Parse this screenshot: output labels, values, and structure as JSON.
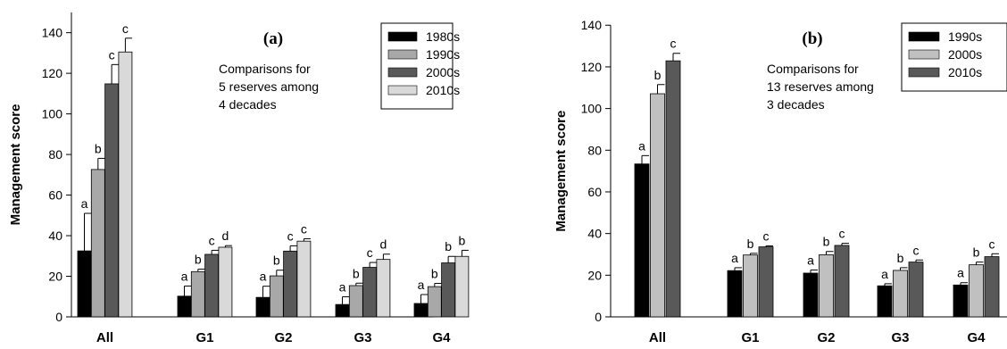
{
  "chart_data": [
    {
      "type": "bar",
      "panel_label": "(a)",
      "note": [
        "Comparisons for",
        "5 reserves among",
        "4 decades"
      ],
      "xlabel": "",
      "ylabel": "Management score",
      "ylim": [
        0,
        150
      ],
      "yticks": [
        0,
        20,
        40,
        60,
        80,
        100,
        120,
        140
      ],
      "categories": [
        "All",
        "G1",
        "G2",
        "G3",
        "G4"
      ],
      "legend_position": "top-right",
      "grid": false,
      "series": [
        {
          "name": "1980s",
          "color": "#000000",
          "values": [
            32.5,
            10.2,
            9.6,
            6.1,
            6.6
          ],
          "errors": [
            18.5,
            5.0,
            5.5,
            3.8,
            4.4
          ],
          "letters": [
            "a",
            "a",
            "a",
            "a",
            "a"
          ]
        },
        {
          "name": "1990s",
          "color": "#a8a8a8",
          "values": [
            72.6,
            22.3,
            20.2,
            15.4,
            14.9
          ],
          "errors": [
            5.5,
            1.2,
            2.8,
            1.2,
            1.6
          ],
          "letters": [
            "b",
            "b",
            "b",
            "b",
            "b"
          ]
        },
        {
          "name": "2000s",
          "color": "#595959",
          "values": [
            114.8,
            30.8,
            32.4,
            24.4,
            26.6
          ],
          "errors": [
            9.5,
            2.0,
            2.6,
            2.4,
            3.2
          ],
          "letters": [
            "c",
            "c",
            "c",
            "c",
            "b"
          ]
        },
        {
          "name": "2010s",
          "color": "#d9d9d9",
          "values": [
            130.5,
            34.3,
            37.3,
            28.3,
            29.8
          ],
          "errors": [
            6.8,
            0.8,
            1.2,
            2.6,
            3.0
          ],
          "letters": [
            "c",
            "d",
            "c",
            "d",
            "b"
          ]
        }
      ]
    },
    {
      "type": "bar",
      "panel_label": "(b)",
      "note": [
        "Comparisons for",
        "13 reserves among",
        "3 decades"
      ],
      "xlabel": "",
      "ylabel": "Management score",
      "ylim": [
        0,
        140
      ],
      "yticks": [
        0,
        20,
        40,
        60,
        80,
        100,
        120,
        140
      ],
      "categories": [
        "All",
        "G1",
        "G2",
        "G3",
        "G4"
      ],
      "legend_position": "top-right",
      "grid": false,
      "series": [
        {
          "name": "1990s",
          "color": "#000000",
          "values": [
            73.4,
            22.2,
            21.0,
            14.9,
            15.3
          ],
          "errors": [
            4.0,
            1.4,
            1.5,
            1.0,
            1.1
          ],
          "letters": [
            "a",
            "a",
            "a",
            "a",
            "a"
          ]
        },
        {
          "name": "2000s",
          "color": "#c0c0c0",
          "values": [
            107.1,
            29.7,
            29.8,
            22.3,
            25.0
          ],
          "errors": [
            4.4,
            0.8,
            1.6,
            1.3,
            1.3
          ],
          "letters": [
            "b",
            "b",
            "b",
            "b",
            "b"
          ]
        },
        {
          "name": "2010s",
          "color": "#595959",
          "values": [
            122.9,
            33.6,
            34.3,
            26.3,
            28.9
          ],
          "errors": [
            3.6,
            0.5,
            1.0,
            1.0,
            1.4
          ],
          "letters": [
            "c",
            "c",
            "c",
            "c",
            "c"
          ]
        }
      ]
    }
  ]
}
